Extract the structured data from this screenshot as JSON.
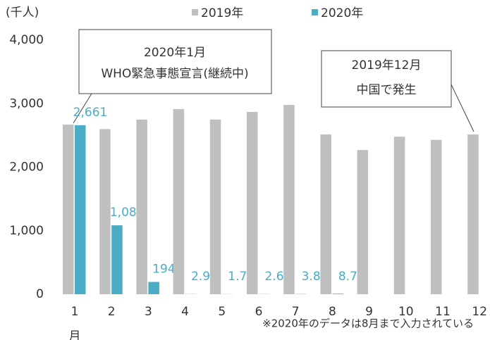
{
  "chart_data": {
    "type": "bar",
    "unit_label": "(千人)",
    "categories": [
      "1",
      "2",
      "3",
      "4",
      "5",
      "6",
      "7",
      "8",
      "9",
      "10",
      "11",
      "12"
    ],
    "x_suffix_label": "月",
    "series": [
      {
        "name": "2019年",
        "color": "#bfbfbf",
        "values": [
          2670,
          2600,
          2750,
          2915,
          2750,
          2870,
          2980,
          2515,
          2270,
          2480,
          2430,
          2515
        ]
      },
      {
        "name": "2020年",
        "color": "#4bacc6",
        "values": [
          2661,
          1085,
          194,
          2.9,
          1.7,
          2.6,
          3.8,
          8.7,
          null,
          null,
          null,
          null
        ],
        "value_labels": [
          "2,661",
          "1,085",
          "194",
          "2.9",
          "1.7",
          "2.6",
          "3.8",
          "8.7",
          null,
          null,
          null,
          null
        ]
      }
    ],
    "ylim": [
      0,
      4000
    ],
    "yticks": [
      0,
      {
        "value": 1000,
        "label": "1,000"
      },
      {
        "value": 2000,
        "label": "2,000"
      },
      {
        "value": 3000,
        "label": "3,000"
      },
      {
        "value": 4000,
        "label": "4,000"
      }
    ],
    "annotations": [
      {
        "lines": [
          "2020年1月",
          "WHO緊急事態宣言(継続中)"
        ]
      },
      {
        "lines": [
          "2019年12月",
          "中国で発生"
        ]
      }
    ],
    "note": "※2020年のデータは8月まで入力されている"
  }
}
